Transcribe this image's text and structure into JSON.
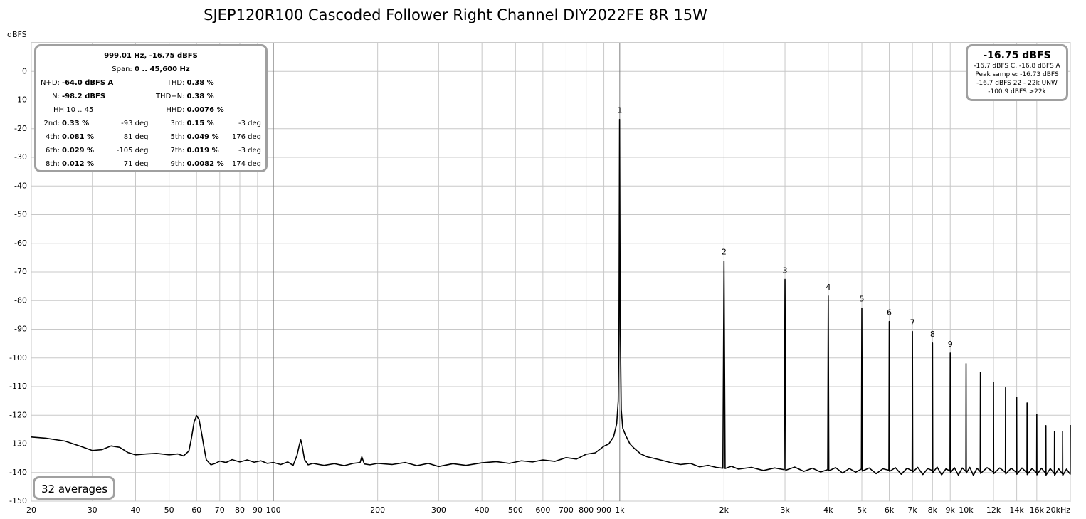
{
  "chart_data": {
    "type": "line",
    "title": "SJEP120R100 Cascoded Follower Right Channel DIY2022FE 8R 15W",
    "y_label": "dBFS",
    "log_x": true,
    "grid": true,
    "color": "#000000",
    "xlim": [
      20,
      20000
    ],
    "ylim": [
      -150,
      10
    ],
    "xticks": [
      20,
      30,
      40,
      50,
      60,
      70,
      80,
      90,
      100,
      200,
      300,
      400,
      500,
      600,
      700,
      800,
      900,
      {
        "value": 1000,
        "label": "1k"
      },
      {
        "value": 2000,
        "label": "2k"
      },
      {
        "value": 3000,
        "label": "3k"
      },
      {
        "value": 4000,
        "label": "4k"
      },
      {
        "value": 5000,
        "label": "5k"
      },
      {
        "value": 6000,
        "label": "6k"
      },
      {
        "value": 7000,
        "label": "7k"
      },
      {
        "value": 8000,
        "label": "8k"
      },
      {
        "value": 9000,
        "label": "9k"
      },
      {
        "value": 10000,
        "label": "10k"
      },
      {
        "value": 12000,
        "label": "12k"
      },
      {
        "value": 14000,
        "label": "14k"
      },
      {
        "value": 16000,
        "label": "16k"
      },
      {
        "value": 20000,
        "label": "20kHz"
      }
    ],
    "yticks": [
      0,
      -10,
      -20,
      -30,
      -40,
      -50,
      -60,
      -70,
      -80,
      -90,
      -100,
      -110,
      -120,
      -130,
      -140,
      -150
    ],
    "x": [
      20,
      22,
      25,
      28,
      30,
      32,
      34,
      36,
      38,
      40,
      43,
      46,
      50,
      53,
      55,
      57,
      58,
      59,
      60,
      61,
      62,
      63,
      64,
      66,
      68,
      70,
      73,
      76,
      80,
      84,
      88,
      92,
      96,
      100,
      105,
      110,
      114,
      117,
      119,
      120,
      121,
      123,
      126,
      130,
      140,
      150,
      160,
      170,
      178,
      180,
      183,
      190,
      200,
      220,
      240,
      260,
      280,
      300,
      330,
      360,
      400,
      440,
      480,
      520,
      560,
      600,
      650,
      700,
      750,
      800,
      850,
      900,
      930,
      960,
      980,
      990,
      995,
      999,
      1003,
      1010,
      1020,
      1040,
      1070,
      1100,
      1150,
      1200,
      1300,
      1400,
      1500,
      1600,
      1700,
      1800,
      1900,
      1985,
      2000,
      2015,
      2100,
      2200,
      2400,
      2600,
      2800,
      2985,
      3000,
      3015,
      3200,
      3400,
      3600,
      3800,
      3985,
      4000,
      4015,
      4200,
      4400,
      4600,
      4800,
      4985,
      5000,
      5015,
      5250,
      5500,
      5750,
      5985,
      6000,
      6015,
      6250,
      6500,
      6750,
      6985,
      7000,
      7015,
      7250,
      7500,
      7750,
      7985,
      8000,
      8015,
      8250,
      8500,
      8750,
      8985,
      9000,
      9015,
      9250,
      9500,
      9750,
      9985,
      10000,
      10015,
      10250,
      10500,
      10750,
      10985,
      11000,
      11015,
      11500,
      11985,
      12000,
      12015,
      12500,
      12985,
      13000,
      13015,
      13500,
      13985,
      14000,
      14015,
      14500,
      14985,
      15000,
      15015,
      15500,
      15985,
      16000,
      16015,
      16500,
      16985,
      17000,
      17015,
      17500,
      17985,
      18000,
      18015,
      18500,
      18985,
      19000,
      19015,
      19500,
      19985,
      20000
    ],
    "values": [
      -127.6,
      -128,
      -129,
      -131,
      -132.3,
      -132,
      -130.7,
      -131.2,
      -133,
      -133.8,
      -133.5,
      -133.3,
      -133.8,
      -133.5,
      -134.2,
      -132.5,
      -128,
      -122.5,
      -120.1,
      -121.5,
      -126,
      -131,
      -135.5,
      -137.3,
      -136.8,
      -136,
      -136.5,
      -135.5,
      -136.3,
      -135.6,
      -136.4,
      -135.9,
      -136.8,
      -136.5,
      -137.2,
      -136.3,
      -137.5,
      -134,
      -130,
      -128.6,
      -130.5,
      -135.5,
      -137.3,
      -136.8,
      -137.5,
      -136.9,
      -137.6,
      -136.8,
      -136.5,
      -134.5,
      -137,
      -137.3,
      -136.8,
      -137.2,
      -136.5,
      -137.6,
      -136.8,
      -137.9,
      -136.9,
      -137.5,
      -136.6,
      -136.2,
      -136.8,
      -135.9,
      -136.3,
      -135.6,
      -136.1,
      -134.8,
      -135.3,
      -133.6,
      -133.1,
      -130.8,
      -130,
      -127.5,
      -123,
      -115,
      -90,
      -16.75,
      -85,
      -118,
      -124.5,
      -127,
      -130,
      -131.5,
      -133.5,
      -134.5,
      -135.5,
      -136.5,
      -137.2,
      -136.8,
      -138,
      -137.5,
      -138.2,
      -138.5,
      -66.2,
      -138.6,
      -137.8,
      -138.8,
      -138.2,
      -139.3,
      -138.4,
      -139,
      -72.6,
      -139.2,
      -138.1,
      -139.6,
      -138.5,
      -139.8,
      -139,
      -78.4,
      -139.4,
      -138.3,
      -140.2,
      -138.6,
      -139.9,
      -138.8,
      -82.6,
      -139.5,
      -138.4,
      -140.4,
      -138.7,
      -139.2,
      -87.3,
      -139.6,
      -138.3,
      -140.6,
      -138.5,
      -139.4,
      -90.8,
      -139.8,
      -138.2,
      -140.7,
      -138.6,
      -139.3,
      -94.8,
      -140,
      -138.1,
      -140.8,
      -138.7,
      -139.5,
      -98.3,
      -140.1,
      -138.3,
      -140.9,
      -138.4,
      -139.6,
      -102,
      -140.2,
      -138.2,
      -141,
      -138.5,
      -139.7,
      -105,
      -140.3,
      -138.3,
      -139.8,
      -108.5,
      -140.4,
      -138.4,
      -139.9,
      -110.4,
      -140.5,
      -138.5,
      -140,
      -113.7,
      -140.6,
      -138.4,
      -140.1,
      -115.7,
      -140.7,
      -138.6,
      -140.2,
      -119.7,
      -140.8,
      -138.5,
      -140.3,
      -123.6,
      -140.9,
      -138.6,
      -140.4,
      -125.6,
      -141,
      -138.7,
      -140.5,
      -125.6,
      -141,
      -138.8,
      -140.6,
      -123.4
    ],
    "markers": [
      {
        "label": "1",
        "x": 1000,
        "y": -16.75
      },
      {
        "label": "2",
        "x": 2000,
        "y": -66.2
      },
      {
        "label": "3",
        "x": 3000,
        "y": -72.6
      },
      {
        "label": "4",
        "x": 4000,
        "y": -78.4
      },
      {
        "label": "5",
        "x": 5000,
        "y": -82.6
      },
      {
        "label": "6",
        "x": 6000,
        "y": -87.3
      },
      {
        "label": "7",
        "x": 7000,
        "y": -90.8
      },
      {
        "label": "8",
        "x": 8000,
        "y": -94.8
      },
      {
        "label": "9",
        "x": 9000,
        "y": -98.3
      }
    ],
    "info_left": {
      "header": "999.01 Hz, -16.75 dBFS",
      "span_label": "Span:",
      "span_value": "0 .. 45,600 Hz",
      "summary": [
        {
          "label": "N+D:",
          "value": "-64.0 dBFS A"
        },
        {
          "label": "THD:",
          "value": "0.38 %"
        },
        {
          "label": "N:",
          "value": "-98.2 dBFS"
        },
        {
          "label": "THD+N:",
          "value": "0.38 %"
        },
        {
          "label": "HH 10 .. 45"
        },
        {
          "label": "HHD:",
          "value": "0.0076 %"
        }
      ],
      "harmonics": [
        {
          "label": "2nd:",
          "value": "0.33 %",
          "phase": "-93 deg"
        },
        {
          "label": "3rd:",
          "value": "0.15 %",
          "phase": "-3 deg"
        },
        {
          "label": "4th:",
          "value": "0.081 %",
          "phase": "81 deg"
        },
        {
          "label": "5th:",
          "value": "0.049 %",
          "phase": "176 deg"
        },
        {
          "label": "6th:",
          "value": "0.029 %",
          "phase": "-105 deg"
        },
        {
          "label": "7th:",
          "value": "0.019 %",
          "phase": "-3 deg"
        },
        {
          "label": "8th:",
          "value": "0.012 %",
          "phase": "71 deg"
        },
        {
          "label": "9th:",
          "value": "0.0082 %",
          "phase": "174 deg"
        }
      ]
    },
    "info_right": {
      "level": "-16.75 dBFS",
      "details": [
        "-16.7 dBFS C, -16.8 dBFS A",
        "Peak sample: -16.73 dBFS",
        "-16.7 dBFS 22 - 22k UNW",
        "-100.9 dBFS >22k"
      ]
    },
    "averages": "32 averages"
  }
}
